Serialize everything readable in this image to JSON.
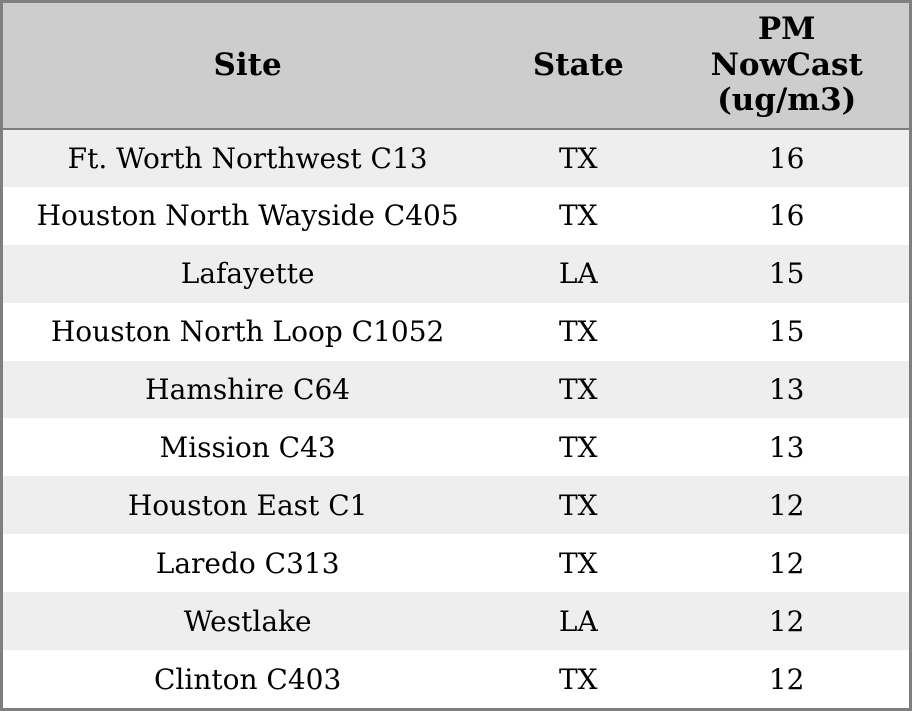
{
  "chart_data": {
    "type": "table",
    "title": "",
    "columns": [
      "Site",
      "State",
      "PM NowCast (ug/m3)"
    ],
    "rows": [
      [
        "Ft. Worth Northwest C13",
        "TX",
        16
      ],
      [
        "Houston North Wayside C405",
        "TX",
        16
      ],
      [
        "Lafayette",
        "LA",
        15
      ],
      [
        "Houston North Loop C1052",
        "TX",
        15
      ],
      [
        "Hamshire C64",
        "TX",
        13
      ],
      [
        "Mission C43",
        "TX",
        13
      ],
      [
        "Houston East C1",
        "TX",
        12
      ],
      [
        "Laredo C313",
        "TX",
        12
      ],
      [
        "Westlake",
        "LA",
        12
      ],
      [
        "Clinton C403",
        "TX",
        12
      ]
    ],
    "layout": {
      "header_align": "center",
      "cell_align": "center",
      "row_striping": true
    }
  },
  "colors": {
    "header_bg": "#cdcdcd",
    "row_stripe": "#eeeeee",
    "row_plain": "#ffffff",
    "border": "#7f7f7f",
    "text": "#000000"
  }
}
